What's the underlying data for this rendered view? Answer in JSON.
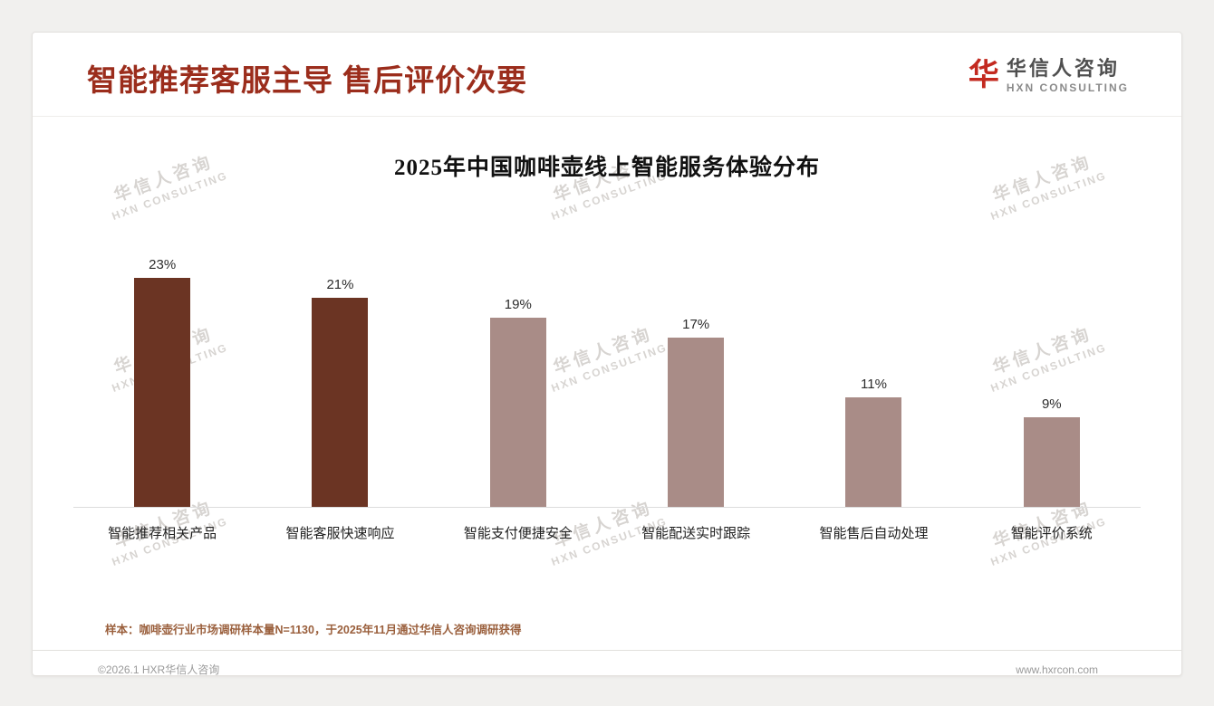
{
  "header": {
    "title": "智能推荐客服主导 售后评价次要",
    "logo": {
      "glyph": "华",
      "name": "华信人咨询",
      "subtitle": "HXN CONSULTING"
    }
  },
  "watermark": {
    "line1": "华信人咨询",
    "line2": "HXN CONSULTING"
  },
  "chart_data": {
    "type": "bar",
    "title": "2025年中国咖啡壶线上智能服务体验分布",
    "categories": [
      "智能推荐相关产品",
      "智能客服快速响应",
      "智能支付便捷安全",
      "智能配送实时跟踪",
      "智能售后自动处理",
      "智能评价系统"
    ],
    "values": [
      23,
      21,
      19,
      17,
      11,
      9
    ],
    "value_labels": [
      "23%",
      "21%",
      "19%",
      "17%",
      "11%",
      "9%"
    ],
    "bar_colors": [
      "#6b3423",
      "#6b3423",
      "#a98c87",
      "#a98c87",
      "#a98c87",
      "#a98c87"
    ],
    "xlabel": "",
    "ylabel": "",
    "ylim": [
      0,
      25
    ],
    "grid": false,
    "legend": false
  },
  "colors": {
    "title": "#9b2d1c",
    "bar_dark": "#6b3423",
    "bar_light": "#a98c87",
    "logo_red": "#c32a20",
    "footnote": "#9a5f3c"
  },
  "footnote": "样本：咖啡壶行业市场调研样本量N=1130，于2025年11月通过华信人咨询调研获得",
  "footer": {
    "left": "©2026.1 HXR华信人咨询",
    "right": "www.hxrcon.com"
  }
}
